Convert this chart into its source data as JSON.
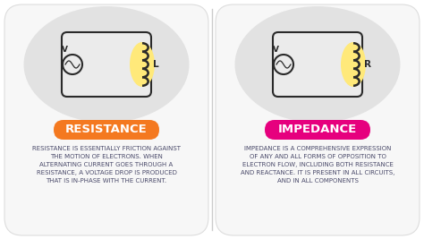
{
  "bg_color": "#ffffff",
  "divider_color": "#cccccc",
  "left_title": "RESISTANCE",
  "right_title": "IMPEDANCE",
  "left_title_bg": "#f47920",
  "right_title_bg": "#e6007e",
  "title_text_color": "#ffffff",
  "left_desc": "RESISTANCE IS ESSENTIALLY FRICTION AGAINST\nTHE MOTION OF ELECTRONS. WHEN\nALTERNATING CURRENT GOES THROUGH A\nRESISTANCE, A VOLTAGE DROP IS PRODUCED\nTHAT IS IN-PHASE WITH THE CURRENT.",
  "right_desc": "IMPEDANCE IS A COMPREHENSIVE EXPRESSION\nOF ANY AND ALL FORMS OF OPPOSITION TO\nELECTRON FLOW, INCLUDING BOTH RESISTANCE\nAND REACTANCE. IT IS PRESENT IN ALL CIRCUITS,\nAND IN ALL COMPONENTS",
  "desc_color": "#4a4a6a",
  "card_bg": "#f7f7f7",
  "card_border": "#dddddd",
  "oval_bg": "#e2e2e2",
  "circuit_bg": "#ebebeb",
  "circuit_color": "#2a2a2a",
  "highlight_yellow": "#ffe97a",
  "label_L": "L",
  "label_R": "R",
  "label_V": "V",
  "title_fontsize": 9.5,
  "desc_fontsize": 5.0
}
